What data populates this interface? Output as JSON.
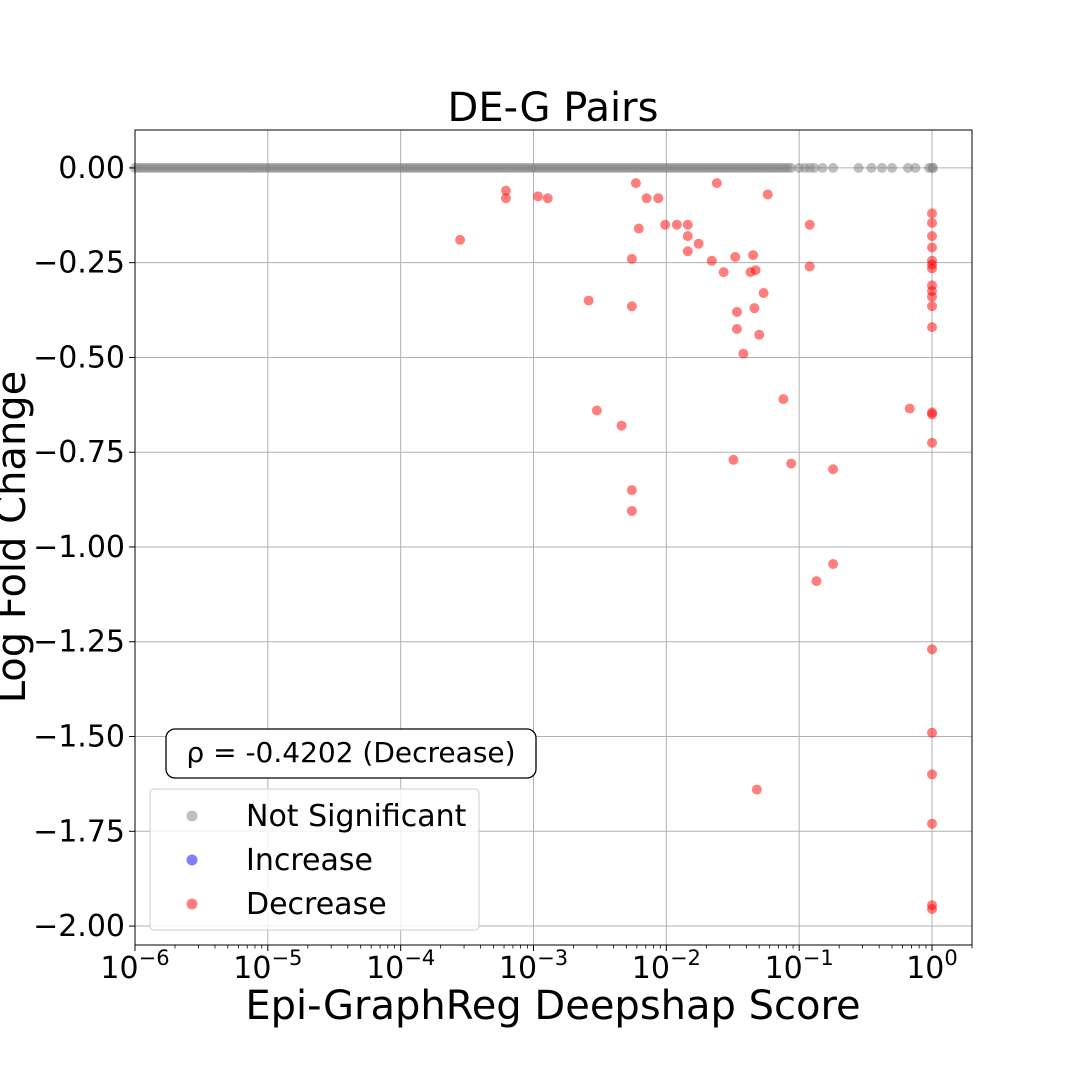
{
  "chart_data": {
    "type": "scatter",
    "title": "DE-G Pairs",
    "xlabel": "Epi-GraphReg Deepshap Score",
    "ylabel": "Log Fold Change",
    "x_scale": "log",
    "xlim": [
      1e-06,
      2
    ],
    "ylim": [
      -2.05,
      0.1
    ],
    "grid": true,
    "x_ticks": [
      {
        "value": 1e-06,
        "base": "10",
        "exp": "−6"
      },
      {
        "value": 1e-05,
        "base": "10",
        "exp": "−5"
      },
      {
        "value": 0.0001,
        "base": "10",
        "exp": "−4"
      },
      {
        "value": 0.001,
        "base": "10",
        "exp": "−3"
      },
      {
        "value": 0.01,
        "base": "10",
        "exp": "−2"
      },
      {
        "value": 0.1,
        "base": "10",
        "exp": "−1"
      },
      {
        "value": 1,
        "base": "10",
        "exp": "0"
      }
    ],
    "y_ticks": [
      {
        "value": 0,
        "label": "0.00"
      },
      {
        "value": -0.25,
        "label": "−0.25"
      },
      {
        "value": -0.5,
        "label": "−0.50"
      },
      {
        "value": -0.75,
        "label": "−0.75"
      },
      {
        "value": -1.0,
        "label": "−1.00"
      },
      {
        "value": -1.25,
        "label": "−1.25"
      },
      {
        "value": -1.5,
        "label": "−1.50"
      },
      {
        "value": -1.75,
        "label": "−1.75"
      },
      {
        "value": -2.0,
        "label": "−2.00"
      }
    ],
    "annotation": "ρ = -0.4202 (Decrease)",
    "legend_position": "lower-left",
    "series": [
      {
        "name": "Not Significant",
        "color": "#808080",
        "fill_x_range": [
          1e-06,
          0.09
        ],
        "values": [
          [
            0.1,
            0
          ],
          [
            0.11,
            0
          ],
          [
            0.12,
            0
          ],
          [
            0.13,
            0
          ],
          [
            0.15,
            0
          ],
          [
            0.18,
            0
          ],
          [
            0.28,
            0
          ],
          [
            0.35,
            0
          ],
          [
            0.42,
            0
          ],
          [
            0.5,
            0
          ],
          [
            0.66,
            0
          ],
          [
            0.75,
            0
          ],
          [
            0.95,
            0
          ],
          [
            1.0,
            0
          ],
          [
            1.02,
            0
          ]
        ]
      },
      {
        "name": "Increase",
        "color": "#0000ff",
        "values": []
      },
      {
        "name": "Decrease",
        "color": "#ff0000",
        "values": [
          [
            0.00028,
            -0.19
          ],
          [
            0.00062,
            -0.06
          ],
          [
            0.00062,
            -0.08
          ],
          [
            0.00108,
            -0.075
          ],
          [
            0.00128,
            -0.08
          ],
          [
            0.0026,
            -0.35
          ],
          [
            0.003,
            -0.64
          ],
          [
            0.0046,
            -0.68
          ],
          [
            0.0055,
            -0.24
          ],
          [
            0.0055,
            -0.365
          ],
          [
            0.0055,
            -0.85
          ],
          [
            0.0055,
            -0.905
          ],
          [
            0.0059,
            -0.04
          ],
          [
            0.0062,
            -0.16
          ],
          [
            0.0071,
            -0.08
          ],
          [
            0.0087,
            -0.08
          ],
          [
            0.0098,
            -0.15
          ],
          [
            0.012,
            -0.15
          ],
          [
            0.0145,
            -0.15
          ],
          [
            0.0145,
            -0.18
          ],
          [
            0.0145,
            -0.22
          ],
          [
            0.0175,
            -0.2
          ],
          [
            0.022,
            -0.245
          ],
          [
            0.024,
            -0.04
          ],
          [
            0.027,
            -0.275
          ],
          [
            0.032,
            -0.77
          ],
          [
            0.033,
            -0.235
          ],
          [
            0.034,
            -0.38
          ],
          [
            0.034,
            -0.425
          ],
          [
            0.038,
            -0.49
          ],
          [
            0.043,
            -0.275
          ],
          [
            0.045,
            -0.23
          ],
          [
            0.046,
            -0.37
          ],
          [
            0.047,
            -0.27
          ],
          [
            0.048,
            -1.64
          ],
          [
            0.05,
            -0.44
          ],
          [
            0.054,
            -0.33
          ],
          [
            0.058,
            -0.07
          ],
          [
            0.076,
            -0.61
          ],
          [
            0.087,
            -0.78
          ],
          [
            0.12,
            -0.15
          ],
          [
            0.12,
            -0.26
          ],
          [
            0.135,
            -1.09
          ],
          [
            0.18,
            -0.795
          ],
          [
            0.18,
            -1.045
          ],
          [
            0.68,
            -0.635
          ],
          [
            1,
            -0.12
          ],
          [
            1,
            -0.145
          ],
          [
            1,
            -0.18
          ],
          [
            1,
            -0.21
          ],
          [
            1,
            -0.245
          ],
          [
            1,
            -0.255
          ],
          [
            1,
            -0.265
          ],
          [
            1,
            -0.31
          ],
          [
            1,
            -0.325
          ],
          [
            1,
            -0.34
          ],
          [
            1,
            -0.365
          ],
          [
            1,
            -0.42
          ],
          [
            1,
            -0.645
          ],
          [
            1,
            -0.65
          ],
          [
            1,
            -0.725
          ],
          [
            1,
            -1.27
          ],
          [
            1,
            -1.49
          ],
          [
            1,
            -1.6
          ],
          [
            1,
            -1.73
          ],
          [
            1,
            -1.945
          ],
          [
            1,
            -1.955
          ]
        ]
      }
    ]
  }
}
